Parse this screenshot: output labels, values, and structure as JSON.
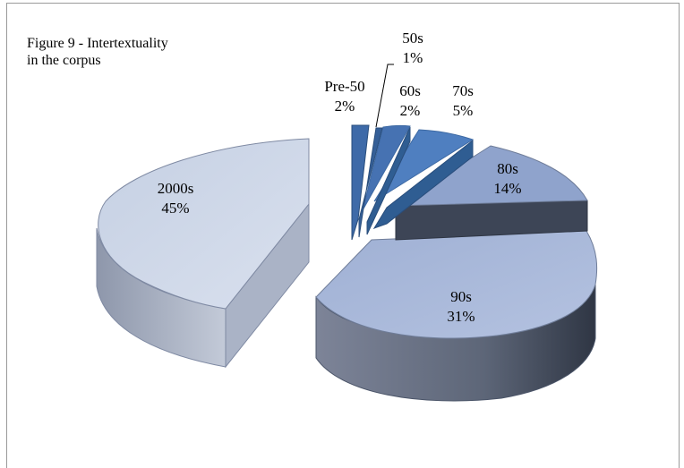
{
  "chart_data": {
    "type": "pie",
    "title": "Figure 9 - Intertextuality\n in the corpus",
    "categories": [
      "Pre-50",
      "50s",
      "60s",
      "70s",
      "80s",
      "90s",
      "2000s"
    ],
    "values": [
      2,
      1,
      2,
      5,
      14,
      31,
      45
    ],
    "labels": [
      {
        "name": "Pre-50",
        "pct": "2%"
      },
      {
        "name": "50s",
        "pct": "1%"
      },
      {
        "name": "60s",
        "pct": "2%"
      },
      {
        "name": "70s",
        "pct": "5%"
      },
      {
        "name": "80s",
        "pct": "14%"
      },
      {
        "name": "90s",
        "pct": "31%"
      },
      {
        "name": "2000s",
        "pct": "45%"
      }
    ],
    "legend": "none",
    "style": "3d-exploded"
  }
}
